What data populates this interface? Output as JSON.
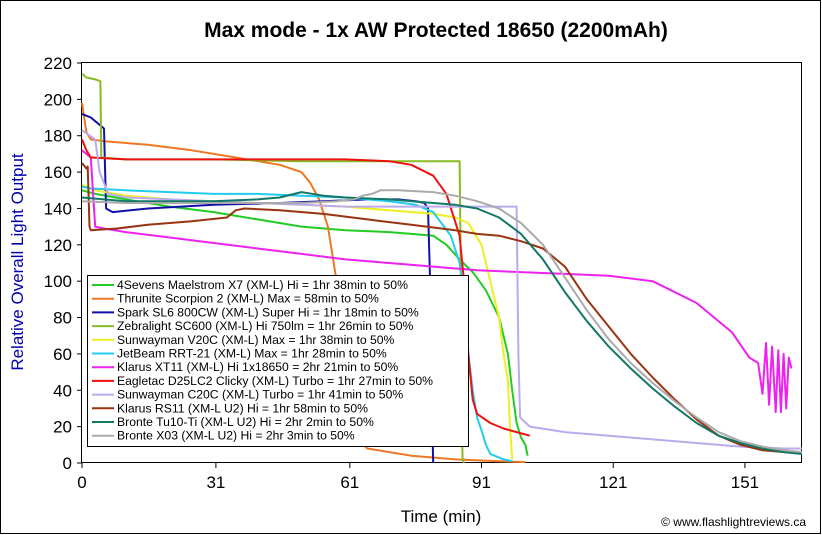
{
  "chart_data": {
    "type": "line",
    "title": "Max mode - 1x AW Protected 18650 (2200mAh)",
    "xlabel": "Time (min)",
    "ylabel": "Relative Overall Light Output",
    "credit": "© www.flashlightreviews.ca",
    "xlim": [
      0,
      164
    ],
    "ylim": [
      0,
      220
    ],
    "x_ticks": [
      "0",
      "31",
      "61",
      "91",
      "121",
      "151"
    ],
    "x_tick_values": [
      0,
      30.5,
      61,
      91,
      121,
      151
    ],
    "y_ticks": [
      "0",
      "20",
      "40",
      "60",
      "80",
      "100",
      "120",
      "140",
      "160",
      "180",
      "200",
      "220"
    ],
    "y_tick_values": [
      0,
      20,
      40,
      60,
      80,
      100,
      120,
      140,
      160,
      180,
      200,
      220
    ],
    "grid": false,
    "legend_position": "bottom-left",
    "series": [
      {
        "name": "4Sevens Maelstrom X7 (XM-L) Hi = 1hr 38min to 50%",
        "color": "#22cc22",
        "points": [
          [
            0,
            150
          ],
          [
            3,
            148
          ],
          [
            10,
            145
          ],
          [
            20,
            141
          ],
          [
            30,
            138
          ],
          [
            40,
            134
          ],
          [
            50,
            130
          ],
          [
            60,
            128
          ],
          [
            70,
            127
          ],
          [
            75,
            126
          ],
          [
            80,
            125
          ],
          [
            83,
            120
          ],
          [
            86,
            112
          ],
          [
            89,
            105
          ],
          [
            92,
            95
          ],
          [
            95,
            80
          ],
          [
            97,
            60
          ],
          [
            98,
            40
          ],
          [
            99,
            22
          ],
          [
            100,
            14
          ],
          [
            101,
            10
          ],
          [
            101.5,
            4
          ]
        ]
      },
      {
        "name": "Thrunite Scorpion 2 (XM-L) Max = 58min to 50%",
        "color": "#ee7722",
        "points": [
          [
            0,
            198
          ],
          [
            1,
            182
          ],
          [
            2,
            178
          ],
          [
            5,
            177
          ],
          [
            15,
            175
          ],
          [
            25,
            172
          ],
          [
            35,
            168
          ],
          [
            45,
            164
          ],
          [
            50,
            160
          ],
          [
            52,
            154
          ],
          [
            54,
            145
          ],
          [
            56,
            130
          ],
          [
            58,
            100
          ],
          [
            60,
            50
          ],
          [
            62,
            15
          ],
          [
            65,
            8
          ],
          [
            75,
            4
          ],
          [
            85,
            2
          ],
          [
            95,
            1
          ],
          [
            101,
            0.5
          ]
        ]
      },
      {
        "name": "Spark SL6 800CW (XM-L) Super Hi = 1hr 18min to 50%",
        "color": "#1111aa",
        "points": [
          [
            0,
            192
          ],
          [
            2,
            190
          ],
          [
            4,
            186
          ],
          [
            5,
            184
          ],
          [
            5.5,
            140
          ],
          [
            7,
            138
          ],
          [
            15,
            140
          ],
          [
            30,
            142
          ],
          [
            45,
            143
          ],
          [
            55,
            144
          ],
          [
            65,
            145
          ],
          [
            72,
            145
          ],
          [
            76,
            144
          ],
          [
            78,
            143
          ],
          [
            78.8,
            140
          ],
          [
            79.3,
            100
          ],
          [
            79.5,
            60
          ],
          [
            79.8,
            20
          ],
          [
            80,
            0
          ]
        ]
      },
      {
        "name": "Zebralight SC600 (XM-L) Hi 750lm = 1hr 26min to 50%",
        "color": "#88bb22",
        "points": [
          [
            0,
            214
          ],
          [
            1,
            212
          ],
          [
            3,
            211
          ],
          [
            4.2,
            210
          ],
          [
            4.4,
            168
          ],
          [
            10,
            167
          ],
          [
            30,
            167
          ],
          [
            50,
            166
          ],
          [
            70,
            166
          ],
          [
            85,
            166
          ],
          [
            86,
            166
          ],
          [
            86.3,
            100
          ],
          [
            86.5,
            20
          ],
          [
            86.7,
            2
          ],
          [
            87,
            0
          ]
        ]
      },
      {
        "name": "Sunwayman V20C (XM-L) Max = 1hr 38min to 50%",
        "color": "#eeee22",
        "points": [
          [
            0,
            153
          ],
          [
            3,
            150
          ],
          [
            10,
            147
          ],
          [
            20,
            145
          ],
          [
            30,
            144
          ],
          [
            40,
            143
          ],
          [
            50,
            142
          ],
          [
            60,
            141
          ],
          [
            70,
            139
          ],
          [
            80,
            137
          ],
          [
            85,
            135
          ],
          [
            88,
            132
          ],
          [
            91,
            120
          ],
          [
            93,
            100
          ],
          [
            95,
            80
          ],
          [
            96,
            60
          ],
          [
            97,
            45
          ],
          [
            97.5,
            20
          ],
          [
            98,
            2
          ]
        ]
      },
      {
        "name": "JetBeam RRT-21 (XM-L) Max = 1hr 28min to 50%",
        "color": "#22ccee",
        "points": [
          [
            0,
            152
          ],
          [
            2,
            151
          ],
          [
            10,
            150
          ],
          [
            20,
            149
          ],
          [
            30,
            148
          ],
          [
            40,
            148
          ],
          [
            50,
            147
          ],
          [
            60,
            146
          ],
          [
            70,
            144
          ],
          [
            76,
            142
          ],
          [
            80,
            138
          ],
          [
            84,
            125
          ],
          [
            86,
            110
          ],
          [
            87,
            90
          ],
          [
            88,
            60
          ],
          [
            89,
            40
          ],
          [
            90,
            25
          ],
          [
            91,
            18
          ],
          [
            92,
            10
          ],
          [
            93,
            5
          ],
          [
            96,
            2
          ],
          [
            98,
            1
          ]
        ]
      },
      {
        "name": "Klarus XT11 (XM-L) Hi 1x18650 = 2hr 21min to 50%",
        "color": "#ee22ee",
        "points": [
          [
            0,
            172
          ],
          [
            2,
            168
          ],
          [
            3,
            130
          ],
          [
            5,
            129
          ],
          [
            10,
            127
          ],
          [
            20,
            124
          ],
          [
            30,
            121
          ],
          [
            40,
            118
          ],
          [
            50,
            115
          ],
          [
            60,
            112
          ],
          [
            70,
            110
          ],
          [
            80,
            108
          ],
          [
            90,
            106
          ],
          [
            100,
            105
          ],
          [
            110,
            104
          ],
          [
            120,
            103
          ],
          [
            130,
            100
          ],
          [
            140,
            88
          ],
          [
            148,
            72
          ],
          [
            152,
            58
          ],
          [
            154,
            55
          ],
          [
            155,
            38
          ],
          [
            155.8,
            66
          ],
          [
            156.5,
            32
          ],
          [
            157.2,
            64
          ],
          [
            158,
            28
          ],
          [
            158.6,
            62
          ],
          [
            159.2,
            28
          ],
          [
            159.8,
            60
          ],
          [
            160.4,
            30
          ],
          [
            161,
            58
          ],
          [
            161.6,
            52
          ]
        ]
      },
      {
        "name": "Eagletac D25LC2 Clicky (XM-L) Turbo = 1hr 27min to 50%",
        "color": "#ee1111",
        "points": [
          [
            0,
            178
          ],
          [
            1,
            172
          ],
          [
            2,
            168
          ],
          [
            10,
            167
          ],
          [
            20,
            167
          ],
          [
            40,
            167
          ],
          [
            60,
            167
          ],
          [
            70,
            166
          ],
          [
            75,
            164
          ],
          [
            80,
            158
          ],
          [
            83,
            148
          ],
          [
            86,
            125
          ],
          [
            87,
            100
          ],
          [
            88,
            60
          ],
          [
            89,
            35
          ],
          [
            90,
            27
          ],
          [
            93,
            22
          ],
          [
            96,
            19
          ],
          [
            99,
            17
          ],
          [
            102,
            15
          ]
        ]
      },
      {
        "name": "Sunwayman C20C (XM-L) Turbo = 1hr 41min to 50%",
        "color": "#bbaaee",
        "points": [
          [
            0,
            183
          ],
          [
            3,
            178
          ],
          [
            4,
            160
          ],
          [
            6,
            148
          ],
          [
            10,
            146
          ],
          [
            20,
            145
          ],
          [
            30,
            144
          ],
          [
            40,
            143
          ],
          [
            50,
            142
          ],
          [
            60,
            141
          ],
          [
            70,
            141
          ],
          [
            80,
            141
          ],
          [
            90,
            141
          ],
          [
            98,
            141
          ],
          [
            99,
            141
          ],
          [
            99.4,
            60
          ],
          [
            99.8,
            25
          ],
          [
            102,
            20
          ],
          [
            110,
            17
          ],
          [
            120,
            15
          ],
          [
            130,
            13
          ],
          [
            140,
            11
          ],
          [
            150,
            9
          ],
          [
            160,
            8
          ],
          [
            164,
            8
          ]
        ]
      },
      {
        "name": "Klarus RS11 (XM-L U2) Hi = 1hr 58min to 50%",
        "color": "#993311",
        "points": [
          [
            0,
            165
          ],
          [
            1,
            162
          ],
          [
            1.3,
            163
          ],
          [
            1.7,
            130
          ],
          [
            2,
            128
          ],
          [
            8,
            129
          ],
          [
            15,
            131
          ],
          [
            25,
            133
          ],
          [
            33,
            135
          ],
          [
            35,
            139
          ],
          [
            37,
            140
          ],
          [
            45,
            139
          ],
          [
            55,
            137
          ],
          [
            65,
            134
          ],
          [
            75,
            131
          ],
          [
            85,
            128
          ],
          [
            90,
            126
          ],
          [
            95,
            125
          ],
          [
            100,
            122
          ],
          [
            105,
            118
          ],
          [
            110,
            108
          ],
          [
            115,
            90
          ],
          [
            120,
            75
          ],
          [
            125,
            60
          ],
          [
            130,
            47
          ],
          [
            135,
            35
          ],
          [
            140,
            24
          ],
          [
            145,
            15
          ],
          [
            150,
            10
          ],
          [
            155,
            7
          ],
          [
            160,
            6
          ],
          [
            164,
            5
          ]
        ]
      },
      {
        "name": "Bronte Tu10-Ti (XM-L U2) Hi = 2hr 2min to 50%",
        "color": "#117766",
        "points": [
          [
            0,
            146
          ],
          [
            5,
            145
          ],
          [
            10,
            144
          ],
          [
            20,
            144
          ],
          [
            30,
            144
          ],
          [
            40,
            145
          ],
          [
            45,
            146
          ],
          [
            50,
            149
          ],
          [
            55,
            147
          ],
          [
            60,
            146
          ],
          [
            70,
            145
          ],
          [
            80,
            143
          ],
          [
            85,
            142
          ],
          [
            90,
            140
          ],
          [
            95,
            135
          ],
          [
            100,
            126
          ],
          [
            105,
            112
          ],
          [
            110,
            94
          ],
          [
            115,
            78
          ],
          [
            120,
            64
          ],
          [
            125,
            52
          ],
          [
            130,
            41
          ],
          [
            135,
            31
          ],
          [
            140,
            22
          ],
          [
            145,
            15
          ],
          [
            150,
            11
          ],
          [
            155,
            8
          ],
          [
            160,
            6
          ],
          [
            164,
            5
          ]
        ]
      },
      {
        "name": "Bronte X03 (XM-L U2) Hi = 2hr 3min to 50%",
        "color": "#aaaaaa",
        "points": [
          [
            0,
            144
          ],
          [
            10,
            143
          ],
          [
            20,
            143
          ],
          [
            30,
            143
          ],
          [
            40,
            143
          ],
          [
            50,
            143
          ],
          [
            58,
            144
          ],
          [
            62,
            145
          ],
          [
            64,
            147
          ],
          [
            66,
            148
          ],
          [
            68,
            150
          ],
          [
            72,
            150
          ],
          [
            80,
            149
          ],
          [
            85,
            147
          ],
          [
            90,
            144
          ],
          [
            95,
            140
          ],
          [
            100,
            132
          ],
          [
            105,
            120
          ],
          [
            110,
            102
          ],
          [
            115,
            84
          ],
          [
            120,
            68
          ],
          [
            125,
            55
          ],
          [
            130,
            44
          ],
          [
            135,
            34
          ],
          [
            140,
            25
          ],
          [
            145,
            17
          ],
          [
            150,
            12
          ],
          [
            155,
            9
          ],
          [
            160,
            7
          ],
          [
            164,
            6
          ]
        ]
      }
    ]
  }
}
